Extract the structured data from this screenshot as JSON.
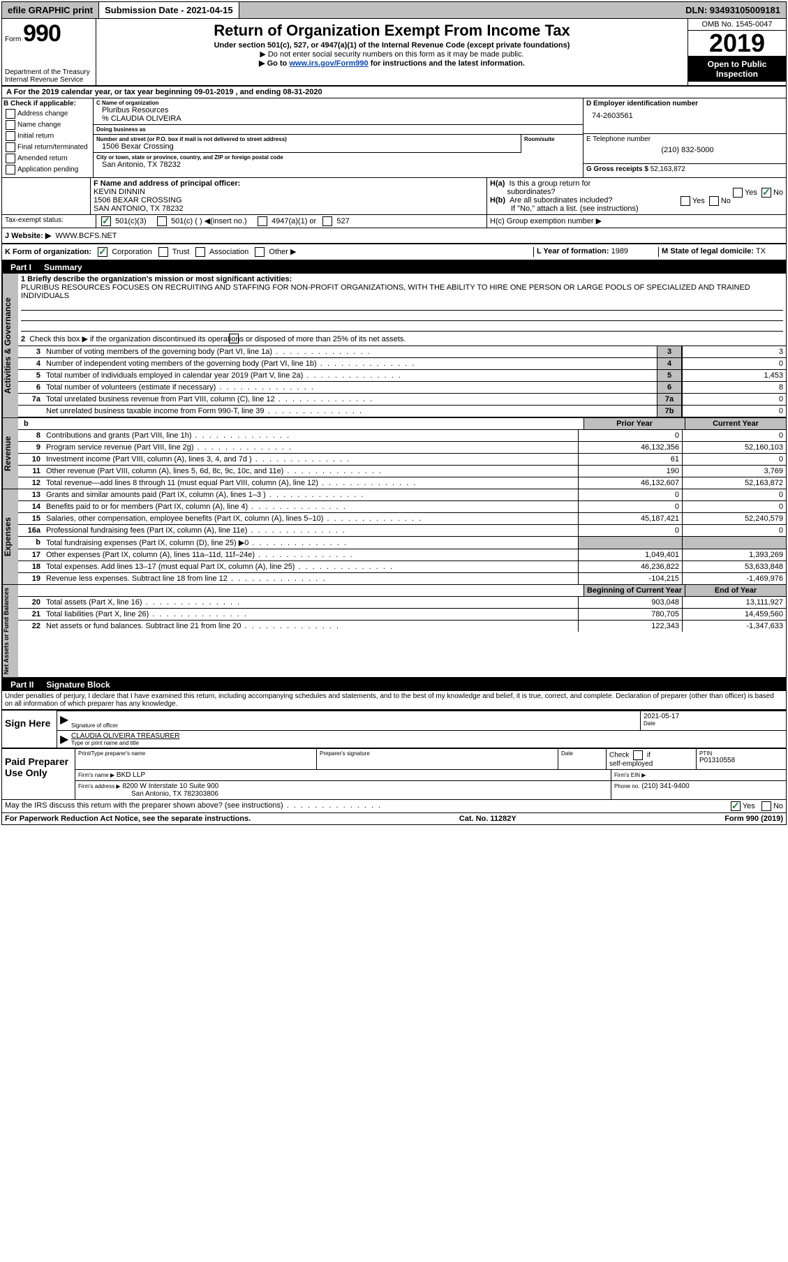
{
  "topbar": {
    "efile": "efile GRAPHIC print",
    "submission_label": "Submission Date - 2021-04-15",
    "dln_label": "DLN: 93493105009181"
  },
  "header": {
    "form_prefix": "Form",
    "form_number": "990",
    "dept": "Department of the Treasury",
    "irs": "Internal Revenue Service",
    "title": "Return of Organization Exempt From Income Tax",
    "subtitle": "Under section 501(c), 527, or 4947(a)(1) of the Internal Revenue Code (except private foundations)",
    "note1": "▶ Do not enter social security numbers on this form as it may be made public.",
    "note2_a": "▶ Go to ",
    "note2_link": "www.irs.gov/Form990",
    "note2_b": " for instructions and the latest information.",
    "omb": "OMB No. 1545-0047",
    "year": "2019",
    "open_public": "Open to Public Inspection"
  },
  "year_line": "A For the 2019 calendar year, or tax year beginning 09-01-2019   , and ending 08-31-2020",
  "B": {
    "title": "B Check if applicable:",
    "items": [
      "Address change",
      "Name change",
      "Initial return",
      "Final return/terminated",
      "Amended return",
      "Application pending"
    ]
  },
  "C": {
    "name_lbl": "C Name of organization",
    "name": "Pluribus Resources",
    "care_of": "% CLAUDIA OLIVEIRA",
    "dba_lbl": "Doing business as",
    "dba": "",
    "street_lbl": "Number and street (or P.O. box if mail is not delivered to street address)",
    "room_lbl": "Room/suite",
    "street": "1506 Bexar Crossing",
    "city_lbl": "City or town, state or province, country, and ZIP or foreign postal code",
    "city": "San Antonio, TX  78232"
  },
  "D": {
    "lbl": "D Employer identification number",
    "val": "74-2603561"
  },
  "E": {
    "lbl": "E Telephone number",
    "val": "(210) 832-5000"
  },
  "G": {
    "lbl": "G Gross receipts $",
    "val": "52,163,872"
  },
  "F": {
    "lbl": "F  Name and address of principal officer:",
    "name": "KEVIN DINNIN",
    "addr1": "1506 BEXAR CROSSING",
    "addr2": "SAN ANTONIO, TX  78232"
  },
  "H": {
    "a_lbl": "H(a)  Is this a group return for subordinates?",
    "b_lbl": "H(b)  Are all subordinates included?",
    "b_note": "If \"No,\" attach a list. (see instructions)",
    "c_lbl": "H(c)  Group exemption number ▶",
    "yes": "Yes",
    "no": "No"
  },
  "I": {
    "lbl": "Tax-exempt status:",
    "o1": "501(c)(3)",
    "o2": "501(c) (  ) ◀(insert no.)",
    "o3": "4947(a)(1) or",
    "o4": "527"
  },
  "J": {
    "lbl": "J   Website: ▶",
    "val": "WWW.BCFS.NET"
  },
  "K": {
    "lbl": "K Form of organization:",
    "o1": "Corporation",
    "o2": "Trust",
    "o3": "Association",
    "o4": "Other ▶"
  },
  "L": {
    "lbl": "L Year of formation:",
    "val": "1989"
  },
  "M": {
    "lbl": "M State of legal domicile:",
    "val": "TX"
  },
  "part1": {
    "label": "Part I",
    "title": "Summary"
  },
  "summary": {
    "l1_lbl": "1  Briefly describe the organization's mission or most significant activities:",
    "l1_text": "PLURIBUS RESOURCES FOCUSES ON RECRUITING AND STAFFING FOR NON-PROFIT ORGANIZATIONS, WITH THE ABILITY TO HIRE ONE PERSON OR LARGE POOLS OF SPECIALIZED AND TRAINED INDIVIDUALS",
    "l2": "Check this box ▶       if the organization discontinued its operations or disposed of more than 25% of its net assets.",
    "lines_ag": [
      {
        "n": "3",
        "d": "Number of voting members of the governing body (Part VI, line 1a)",
        "b": "3",
        "v": "3"
      },
      {
        "n": "4",
        "d": "Number of independent voting members of the governing body (Part VI, line 1b)",
        "b": "4",
        "v": "0"
      },
      {
        "n": "5",
        "d": "Total number of individuals employed in calendar year 2019 (Part V, line 2a)",
        "b": "5",
        "v": "1,453"
      },
      {
        "n": "6",
        "d": "Total number of volunteers (estimate if necessary)",
        "b": "6",
        "v": "8"
      },
      {
        "n": "7a",
        "d": "Total unrelated business revenue from Part VIII, column (C), line 12",
        "b": "7a",
        "v": "0"
      },
      {
        "n": "",
        "d": "Net unrelated business taxable income from Form 990-T, line 39",
        "b": "7b",
        "v": "0"
      }
    ],
    "yh": {
      "b": "b",
      "py": "Prior Year",
      "cy": "Current Year"
    },
    "rev": [
      {
        "n": "8",
        "d": "Contributions and grants (Part VIII, line 1h)",
        "v1": "0",
        "v2": "0"
      },
      {
        "n": "9",
        "d": "Program service revenue (Part VIII, line 2g)",
        "v1": "46,132,356",
        "v2": "52,160,103"
      },
      {
        "n": "10",
        "d": "Investment income (Part VIII, column (A), lines 3, 4, and 7d )",
        "v1": "61",
        "v2": "0"
      },
      {
        "n": "11",
        "d": "Other revenue (Part VIII, column (A), lines 5, 6d, 8c, 9c, 10c, and 11e)",
        "v1": "190",
        "v2": "3,769"
      },
      {
        "n": "12",
        "d": "Total revenue—add lines 8 through 11 (must equal Part VIII, column (A), line 12)",
        "v1": "46,132,607",
        "v2": "52,163,872"
      }
    ],
    "exp": [
      {
        "n": "13",
        "d": "Grants and similar amounts paid (Part IX, column (A), lines 1–3 )",
        "v1": "0",
        "v2": "0"
      },
      {
        "n": "14",
        "d": "Benefits paid to or for members (Part IX, column (A), line 4)",
        "v1": "0",
        "v2": "0"
      },
      {
        "n": "15",
        "d": "Salaries, other compensation, employee benefits (Part IX, column (A), lines 5–10)",
        "v1": "45,187,421",
        "v2": "52,240,579"
      },
      {
        "n": "16a",
        "d": "Professional fundraising fees (Part IX, column (A), line 11e)",
        "v1": "0",
        "v2": "0"
      },
      {
        "n": "b",
        "d": "Total fundraising expenses (Part IX, column (D), line 25) ▶0",
        "v1": "",
        "v2": "",
        "grey": true
      },
      {
        "n": "17",
        "d": "Other expenses (Part IX, column (A), lines 11a–11d, 11f–24e)",
        "v1": "1,049,401",
        "v2": "1,393,269"
      },
      {
        "n": "18",
        "d": "Total expenses. Add lines 13–17 (must equal Part IX, column (A), line 25)",
        "v1": "46,236,822",
        "v2": "53,633,848"
      },
      {
        "n": "19",
        "d": "Revenue less expenses. Subtract line 18 from line 12",
        "v1": "-104,215",
        "v2": "-1,469,976"
      }
    ],
    "yh2": {
      "py": "Beginning of Current Year",
      "cy": "End of Year"
    },
    "na": [
      {
        "n": "20",
        "d": "Total assets (Part X, line 16)",
        "v1": "903,048",
        "v2": "13,111,927"
      },
      {
        "n": "21",
        "d": "Total liabilities (Part X, line 26)",
        "v1": "780,705",
        "v2": "14,459,560"
      },
      {
        "n": "22",
        "d": "Net assets or fund balances. Subtract line 21 from line 20",
        "v1": "122,343",
        "v2": "-1,347,633"
      }
    ],
    "vtabs": {
      "ag": "Activities & Governance",
      "rev": "Revenue",
      "exp": "Expenses",
      "na": "Net Assets or Fund Balances"
    }
  },
  "part2": {
    "label": "Part II",
    "title": "Signature Block"
  },
  "perjury": "Under penalties of perjury, I declare that I have examined this return, including accompanying schedules and statements, and to the best of my knowledge and belief, it is true, correct, and complete. Declaration of preparer (other than officer) is based on all information of which preparer has any knowledge.",
  "sign": {
    "here": "Sign Here",
    "sig_lbl": "Signature of officer",
    "date_lbl": "Date",
    "date": "2021-05-17",
    "name": "CLAUDIA OLIVEIRA  TREASURER",
    "name_lbl": "Type or print name and title"
  },
  "paid": {
    "label": "Paid Preparer Use Only",
    "pn_lbl": "Print/Type preparer's name",
    "ps_lbl": "Preparer's signature",
    "d_lbl": "Date",
    "chk_lbl": "Check       if self-employed",
    "ptin_lbl": "PTIN",
    "ptin": "P01310558",
    "firm_name_lbl": "Firm's name    ▶",
    "firm_name": "BKD LLP",
    "firm_ein_lbl": "Firm's EIN ▶",
    "firm_addr_lbl": "Firm's address ▶",
    "firm_addr1": "8200 W Interstate 10 Suite 900",
    "firm_addr2": "San Antonio, TX  782303806",
    "phone_lbl": "Phone no.",
    "phone": "(210) 341-9400"
  },
  "discuss": {
    "q": "May the IRS discuss this return with the preparer shown above? (see instructions)",
    "yes": "Yes",
    "no": "No"
  },
  "footer": {
    "left": "For Paperwork Reduction Act Notice, see the separate instructions.",
    "mid": "Cat. No. 11282Y",
    "right": "Form 990 (2019)"
  }
}
